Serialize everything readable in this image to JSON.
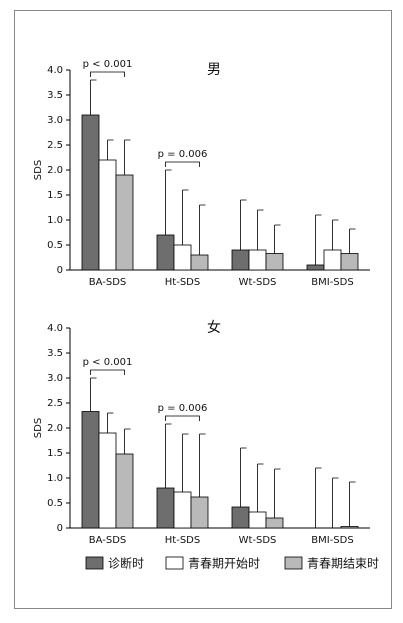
{
  "chart_data": [
    {
      "type": "bar",
      "title": "男",
      "y_label": "SDS",
      "categories": [
        "BA-SDS",
        "Ht-SDS",
        "Wt-SDS",
        "BMI-SDS"
      ],
      "series": [
        {
          "name": "诊断时",
          "color": "#6e6e6e",
          "values": [
            3.1,
            0.7,
            0.4,
            0.1
          ],
          "errors": [
            0.7,
            1.3,
            1.0,
            1.0
          ]
        },
        {
          "name": "青春期开始时",
          "color": "#ffffff",
          "values": [
            2.2,
            0.5,
            0.4,
            0.4
          ],
          "errors": [
            0.4,
            1.1,
            0.8,
            0.6
          ]
        },
        {
          "name": "青春期结束时",
          "color": "#b9b9b9",
          "values": [
            1.9,
            0.3,
            0.33,
            0.33
          ],
          "errors": [
            0.7,
            1.0,
            0.57,
            0.49
          ]
        }
      ],
      "ylim": [
        0,
        4.0
      ],
      "yticks": [
        0,
        0.5,
        {
          "value": 1,
          "label": "1.0"
        },
        1.5,
        {
          "value": 2,
          "label": "2.0"
        },
        2.5,
        {
          "value": 3,
          "label": "3.0"
        },
        3.5,
        {
          "value": 4,
          "label": "4.0"
        }
      ],
      "annotations": [
        "p < 0.001",
        "p = 0.006"
      ]
    },
    {
      "type": "bar",
      "title": "女",
      "y_label": "SDS",
      "categories": [
        "BA-SDS",
        "Ht-SDS",
        "Wt-SDS",
        "BMI-SDS"
      ],
      "series": [
        {
          "color": "#6e6e6e",
          "values": [
            2.33,
            0.8,
            0.42,
            0
          ],
          "errors": [
            0.67,
            1.28,
            1.18,
            1.2
          ]
        },
        {
          "color": "#ffffff",
          "values": [
            1.9,
            0.72,
            0.32,
            0
          ],
          "errors": [
            0.4,
            1.16,
            0.96,
            1.0
          ]
        },
        {
          "color": "#b9b9b9",
          "values": [
            1.48,
            0.62,
            0.2,
            0.03
          ],
          "errors": [
            0.5,
            1.26,
            0.98,
            0.89
          ]
        }
      ],
      "ylim": [
        0,
        4.0
      ],
      "yticks": [
        0,
        0.5,
        {
          "value": 1,
          "label": "1.0"
        },
        1.5,
        {
          "value": 2,
          "label": "2.0"
        },
        2.5,
        {
          "value": 3,
          "label": "3.0"
        },
        3.5,
        {
          "value": 4,
          "label": "4.0"
        }
      ],
      "annotations": [
        "p < 0.001",
        "p = 0.006"
      ]
    }
  ]
}
